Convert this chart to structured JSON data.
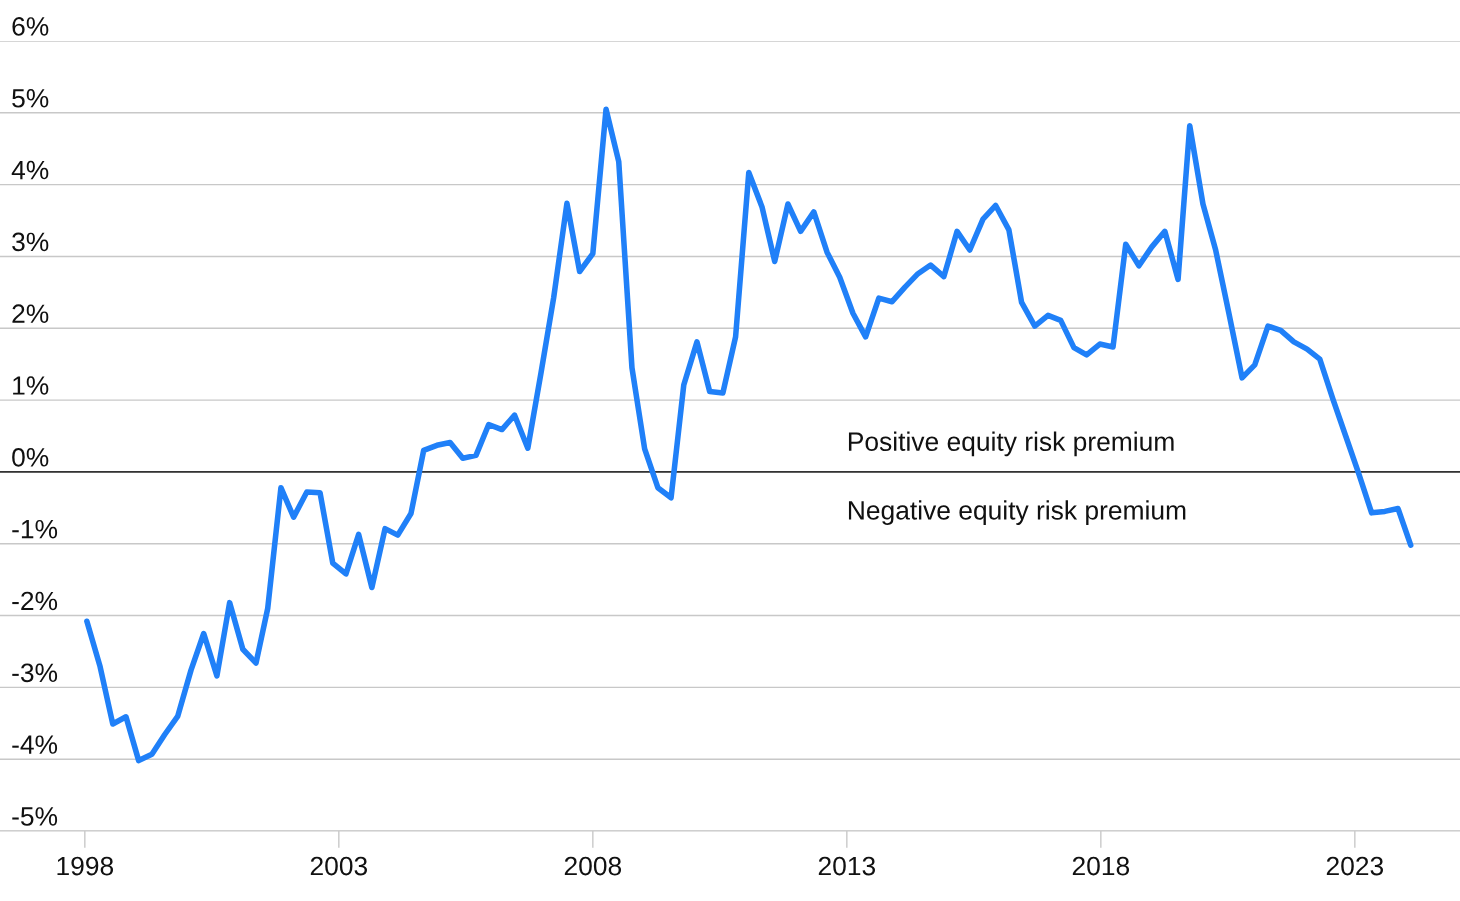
{
  "chart_data": {
    "type": "line",
    "x": [
      1998.04,
      1998.3,
      1998.55,
      1998.81,
      1999.06,
      1999.32,
      1999.57,
      1999.83,
      2000.09,
      2000.34,
      2000.6,
      2000.85,
      2001.11,
      2001.37,
      2001.6,
      2001.86,
      2002.11,
      2002.37,
      2002.63,
      2002.88,
      2003.14,
      2003.39,
      2003.65,
      2003.91,
      2004.16,
      2004.42,
      2004.67,
      2004.93,
      2005.19,
      2005.44,
      2005.7,
      2005.95,
      2006.21,
      2006.46,
      2006.72,
      2006.98,
      2007.23,
      2007.49,
      2007.74,
      2008.0,
      2008.26,
      2008.51,
      2008.77,
      2009.02,
      2009.28,
      2009.54,
      2009.79,
      2010.05,
      2010.3,
      2010.56,
      2010.81,
      2011.07,
      2011.33,
      2011.58,
      2011.84,
      2012.09,
      2012.35,
      2012.61,
      2012.86,
      2013.12,
      2013.37,
      2013.63,
      2013.89,
      2014.14,
      2014.4,
      2014.65,
      2014.91,
      2015.17,
      2015.42,
      2015.68,
      2015.93,
      2016.19,
      2016.44,
      2016.7,
      2016.96,
      2017.21,
      2017.47,
      2017.72,
      2017.98,
      2018.24,
      2018.49,
      2018.75,
      2019.0,
      2019.26,
      2019.52,
      2019.75,
      2020.01,
      2020.26,
      2020.52,
      2020.78,
      2021.03,
      2021.29,
      2021.54,
      2021.8,
      2022.06,
      2022.31,
      2022.57,
      2022.82,
      2023.08,
      2023.33,
      2023.59,
      2023.85,
      2024.1
    ],
    "series": [
      {
        "color": "#2080f8",
        "values": [
          -2.08,
          -2.71,
          -3.51,
          -3.41,
          -4.02,
          -3.93,
          -3.66,
          -3.4,
          -2.76,
          -2.25,
          -2.84,
          -1.82,
          -2.47,
          -2.66,
          -1.9,
          -0.22,
          -0.63,
          -0.28,
          -0.29,
          -1.27,
          -1.42,
          -0.87,
          -1.61,
          -0.79,
          -0.88,
          -0.58,
          0.3,
          0.37,
          0.41,
          0.19,
          0.23,
          0.66,
          0.59,
          0.79,
          0.33,
          1.38,
          2.43,
          3.74,
          2.79,
          3.04,
          5.05,
          4.32,
          1.45,
          0.32,
          -0.22,
          -0.36,
          1.21,
          1.81,
          1.12,
          1.1,
          1.88,
          4.17,
          3.69,
          2.93,
          3.73,
          3.35,
          3.62,
          3.06,
          2.71,
          2.21,
          1.88,
          2.42,
          2.37,
          2.57,
          2.76,
          2.88,
          2.72,
          3.35,
          3.09,
          3.52,
          3.71,
          3.37,
          2.36,
          2.03,
          2.18,
          2.11,
          1.73,
          1.63,
          1.78,
          1.74,
          3.17,
          2.87,
          3.13,
          3.35,
          2.68,
          4.82,
          3.73,
          3.09,
          2.21,
          1.31,
          1.49,
          2.03,
          1.97,
          1.81,
          1.71,
          1.57,
          1.01,
          0.5,
          -0.03,
          -0.57,
          -0.55,
          -0.51,
          -1.02
        ]
      }
    ],
    "xlim": [
      1996.33,
      2025.07
    ],
    "xticks": [
      1998,
      2003,
      2008,
      2013,
      2018,
      2023
    ],
    "ylim": [
      -5,
      6
    ],
    "yticks": [
      {
        "value": -5,
        "label": "-5%"
      },
      {
        "value": -4,
        "label": "-4%"
      },
      {
        "value": -3,
        "label": "-3%"
      },
      {
        "value": -2,
        "label": "-2%"
      },
      {
        "value": -1,
        "label": "-1%"
      },
      {
        "value": 0,
        "label": "0%"
      },
      {
        "value": 1,
        "label": "1%"
      },
      {
        "value": 2,
        "label": "2%"
      },
      {
        "value": 3,
        "label": "3%"
      },
      {
        "value": 4,
        "label": "4%"
      },
      {
        "value": 5,
        "label": "5%"
      },
      {
        "value": 6,
        "label": "6%"
      }
    ],
    "grid": "y",
    "ref_lines": [
      {
        "axis": "y",
        "value": 0,
        "color": "#333333"
      }
    ],
    "annotations": [
      "Positive equity risk premium",
      "Negative equity risk premium"
    ],
    "line_style": "solid",
    "marker": "none",
    "legend": false
  }
}
